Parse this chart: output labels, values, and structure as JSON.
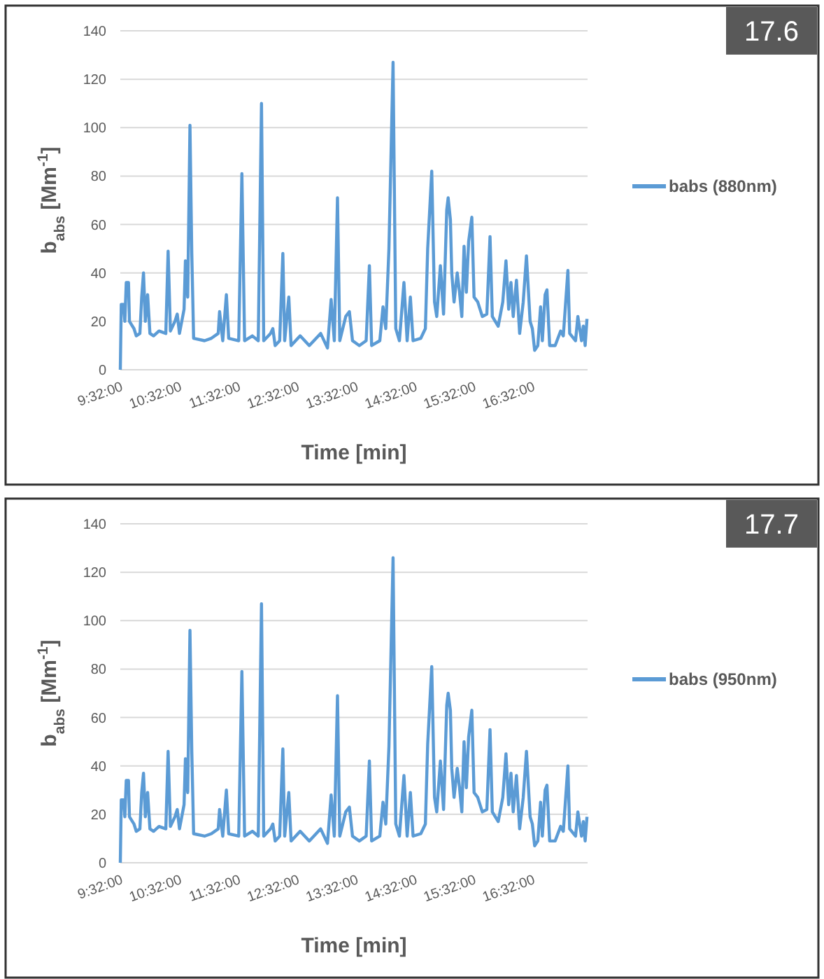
{
  "chart_data": [
    {
      "type": "line",
      "annotations": [
        "17.6"
      ],
      "xlabel": "Time [min]",
      "ylabel": "b$_{abs}$ [Mm$^{-1}$]",
      "xlim": [
        9.533,
        17.47
      ],
      "ylim": [
        0,
        140
      ],
      "xticks": [
        {
          "value": 9.533333,
          "label": "9:32:00"
        },
        {
          "value": 10.533333,
          "label": "10:32:00"
        },
        {
          "value": 11.533333,
          "label": "11:32:00"
        },
        {
          "value": 12.533333,
          "label": "12:32:00"
        },
        {
          "value": 13.533333,
          "label": "13:32:00"
        },
        {
          "value": 14.533333,
          "label": "14:32:00"
        },
        {
          "value": 15.533333,
          "label": "15:32:00"
        },
        {
          "value": 16.533333,
          "label": "16:32:00"
        }
      ],
      "yticks": [
        0,
        20,
        40,
        60,
        80,
        100,
        120,
        140
      ],
      "grid": "y",
      "legend": "right",
      "marker": "none",
      "line_style": "solid",
      "x": [
        9.533,
        9.549,
        9.587,
        9.61,
        9.634,
        9.672,
        9.688,
        9.765,
        9.804,
        9.866,
        9.896,
        9.927,
        9.958,
        9.997,
        10.036,
        10.098,
        10.19,
        10.306,
        10.345,
        10.384,
        10.461,
        10.5,
        10.538,
        10.616,
        10.639,
        10.678,
        10.716,
        10.747,
        10.778,
        10.964,
        11.08,
        11.196,
        11.219,
        11.273,
        11.335,
        11.374,
        11.544,
        11.598,
        11.644,
        11.776,
        11.876,
        11.931,
        11.969,
        12.085,
        12.124,
        12.163,
        12.24,
        12.294,
        12.325,
        12.395,
        12.434,
        12.588,
        12.743,
        12.936,
        13.052,
        13.114,
        13.168,
        13.222,
        13.261,
        13.362,
        13.424,
        13.477,
        13.593,
        13.709,
        13.764,
        13.802,
        13.941,
        13.995,
        14.042,
        14.096,
        14.166,
        14.212,
        14.274,
        14.351,
        14.405,
        14.46,
        14.506,
        14.637,
        14.715,
        14.754,
        14.823,
        14.87,
        14.908,
        14.97,
        15.024,
        15.078,
        15.102,
        15.14,
        15.163,
        15.202,
        15.256,
        15.295,
        15.334,
        15.372,
        15.411,
        15.45,
        15.504,
        15.542,
        15.604,
        15.682,
        15.759,
        15.813,
        15.852,
        15.952,
        16.03,
        16.084,
        16.13,
        16.169,
        16.207,
        16.262,
        16.316,
        16.377,
        16.432,
        16.494,
        16.532,
        16.571,
        16.625,
        16.672,
        16.702,
        16.749,
        16.78,
        16.826,
        16.919,
        17.012,
        17.058,
        17.136,
        17.166,
        17.266,
        17.305,
        17.367,
        17.398,
        17.429,
        17.46
      ],
      "series": [
        {
          "name": "babs (880nm)",
          "color": "#5b9bd5",
          "values": [
            0,
            27,
            27,
            20,
            36,
            36,
            20,
            17,
            14,
            15,
            30,
            40,
            20,
            31,
            15,
            14,
            16,
            15,
            49,
            16,
            20,
            23,
            15,
            25,
            45,
            30,
            101,
            48,
            13,
            12,
            13,
            15,
            24,
            12,
            31,
            13,
            12,
            81,
            12,
            14,
            12,
            110,
            12,
            15,
            17,
            10,
            12,
            48,
            12,
            30,
            10,
            14,
            10,
            15,
            9,
            29,
            12,
            71,
            12,
            22,
            24,
            12,
            10,
            12,
            43,
            10,
            12,
            26,
            17,
            50,
            127,
            17,
            12,
            36,
            12,
            30,
            12,
            13,
            17,
            50,
            82,
            28,
            22,
            43,
            23,
            66,
            71,
            62,
            40,
            28,
            40,
            32,
            22,
            51,
            32,
            53,
            63,
            30,
            28,
            22,
            23,
            55,
            22,
            18,
            28,
            45,
            25,
            36,
            22,
            37,
            15,
            28,
            47,
            20,
            17,
            8,
            10,
            26,
            12,
            31,
            33,
            10,
            10,
            16,
            14,
            41,
            15,
            12,
            22,
            12,
            18,
            10,
            21
          ]
        }
      ]
    },
    {
      "type": "line",
      "annotations": [
        "17.7"
      ],
      "xlabel": "Time [min]",
      "ylabel": "b$_{abs}$ [Mm$^{-1}$]",
      "xlim": [
        9.533,
        17.47
      ],
      "ylim": [
        0,
        140
      ],
      "xticks": [
        {
          "value": 9.533333,
          "label": "9:32:00"
        },
        {
          "value": 10.533333,
          "label": "10:32:00"
        },
        {
          "value": 11.533333,
          "label": "11:32:00"
        },
        {
          "value": 12.533333,
          "label": "12:32:00"
        },
        {
          "value": 13.533333,
          "label": "13:32:00"
        },
        {
          "value": 14.533333,
          "label": "14:32:00"
        },
        {
          "value": 15.533333,
          "label": "15:32:00"
        },
        {
          "value": 16.533333,
          "label": "16:32:00"
        }
      ],
      "yticks": [
        0,
        20,
        40,
        60,
        80,
        100,
        120,
        140
      ],
      "grid": "y",
      "legend": "right",
      "marker": "none",
      "line_style": "solid",
      "x": [
        9.533,
        9.549,
        9.587,
        9.61,
        9.634,
        9.672,
        9.688,
        9.765,
        9.804,
        9.866,
        9.896,
        9.927,
        9.958,
        9.997,
        10.036,
        10.098,
        10.19,
        10.306,
        10.345,
        10.384,
        10.461,
        10.5,
        10.538,
        10.616,
        10.639,
        10.678,
        10.716,
        10.747,
        10.778,
        10.964,
        11.08,
        11.196,
        11.219,
        11.273,
        11.335,
        11.374,
        11.544,
        11.598,
        11.644,
        11.776,
        11.876,
        11.931,
        11.969,
        12.085,
        12.124,
        12.163,
        12.24,
        12.294,
        12.325,
        12.395,
        12.434,
        12.588,
        12.743,
        12.936,
        13.052,
        13.114,
        13.168,
        13.222,
        13.261,
        13.362,
        13.424,
        13.477,
        13.593,
        13.709,
        13.764,
        13.802,
        13.941,
        13.995,
        14.042,
        14.096,
        14.166,
        14.212,
        14.274,
        14.351,
        14.405,
        14.46,
        14.506,
        14.637,
        14.715,
        14.754,
        14.823,
        14.87,
        14.908,
        14.97,
        15.024,
        15.078,
        15.102,
        15.14,
        15.163,
        15.202,
        15.256,
        15.295,
        15.334,
        15.372,
        15.411,
        15.45,
        15.504,
        15.542,
        15.604,
        15.682,
        15.759,
        15.813,
        15.852,
        15.952,
        16.03,
        16.084,
        16.13,
        16.169,
        16.207,
        16.262,
        16.316,
        16.377,
        16.432,
        16.494,
        16.532,
        16.571,
        16.625,
        16.672,
        16.702,
        16.749,
        16.78,
        16.826,
        16.919,
        17.012,
        17.058,
        17.136,
        17.166,
        17.266,
        17.305,
        17.367,
        17.398,
        17.429,
        17.46
      ],
      "series": [
        {
          "name": "babs (950nm)",
          "color": "#5b9bd5",
          "values": [
            0,
            26,
            26,
            19,
            34,
            34,
            19,
            16,
            13,
            14,
            29,
            37,
            19,
            29,
            14,
            13,
            15,
            14,
            46,
            15,
            19,
            22,
            14,
            24,
            43,
            29,
            96,
            46,
            12,
            11,
            12,
            14,
            22,
            11,
            30,
            12,
            11,
            79,
            11,
            13,
            11,
            107,
            11,
            14,
            16,
            9,
            11,
            47,
            11,
            29,
            9,
            13,
            9,
            14,
            8,
            28,
            11,
            69,
            11,
            21,
            23,
            11,
            9,
            11,
            42,
            9,
            11,
            25,
            16,
            48,
            126,
            16,
            11,
            36,
            11,
            29,
            11,
            12,
            16,
            49,
            81,
            27,
            21,
            42,
            22,
            65,
            70,
            63,
            39,
            27,
            39,
            31,
            21,
            50,
            31,
            52,
            63,
            29,
            27,
            21,
            22,
            55,
            21,
            17,
            27,
            45,
            24,
            37,
            21,
            36,
            14,
            27,
            46,
            19,
            16,
            7,
            9,
            25,
            11,
            30,
            32,
            9,
            9,
            15,
            13,
            40,
            14,
            11,
            21,
            11,
            17,
            9,
            19
          ]
        }
      ]
    }
  ]
}
